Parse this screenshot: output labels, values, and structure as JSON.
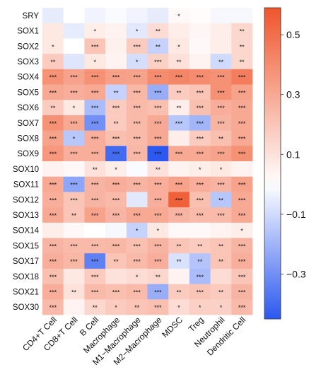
{
  "chart_data": {
    "type": "heatmap",
    "rows": [
      "SRY",
      "SOX1",
      "SOX2",
      "SOX3",
      "SOX4",
      "SOX5",
      "SOX6",
      "SOX7",
      "SOX8",
      "SOX9",
      "SOX10",
      "SOX11",
      "SOX12",
      "SOX13",
      "SOX14",
      "SOX15",
      "SOX17",
      "SOX18",
      "SOX21",
      "SOX30"
    ],
    "columns": [
      "CD4+T Cell",
      "CD8+T Cell",
      "B Cell",
      "Macrophage",
      "M1−Macrophage",
      "M2−Macrophage",
      "MDSC",
      "Treg",
      "Neutrophil",
      "Dendritic Cell"
    ],
    "values": [
      [
        -0.05,
        0.0,
        -0.03,
        -0.01,
        -0.03,
        -0.05,
        0.02,
        0.01,
        -0.02,
        -0.02
      ],
      [
        0.08,
        -0.05,
        0.06,
        0.04,
        -0.06,
        0.12,
        0.06,
        0.03,
        0.06,
        0.14
      ],
      [
        0.08,
        0.0,
        0.2,
        0.05,
        0.18,
        -0.12,
        0.08,
        0.02,
        0.06,
        0.14
      ],
      [
        0.18,
        -0.07,
        0.08,
        0.04,
        -0.09,
        0.16,
        0.1,
        0.04,
        -0.1,
        0.14
      ],
      [
        0.38,
        0.32,
        0.38,
        0.33,
        0.32,
        0.4,
        0.42,
        0.4,
        0.38,
        0.45
      ],
      [
        0.3,
        0.28,
        0.3,
        -0.12,
        0.25,
        -0.22,
        0.18,
        0.2,
        0.38,
        0.32
      ],
      [
        0.18,
        0.08,
        -0.18,
        0.18,
        0.24,
        0.22,
        0.06,
        0.22,
        0.28,
        0.3
      ],
      [
        0.38,
        0.3,
        -0.3,
        0.18,
        0.24,
        0.3,
        -0.15,
        -0.2,
        0.26,
        0.3
      ],
      [
        0.32,
        -0.15,
        0.28,
        0.22,
        0.24,
        0.3,
        0.06,
        0.18,
        0.22,
        0.3
      ],
      [
        0.36,
        0.28,
        0.28,
        -0.4,
        0.25,
        -0.45,
        0.3,
        0.3,
        0.32,
        0.38
      ],
      [
        0.04,
        0.02,
        0.1,
        0.06,
        -0.01,
        0.1,
        0.04,
        0.06,
        0.08,
        0.04
      ],
      [
        0.3,
        -0.24,
        0.26,
        0.28,
        0.26,
        0.28,
        0.32,
        0.28,
        0.26,
        0.32
      ],
      [
        0.28,
        0.2,
        0.26,
        0.24,
        -0.06,
        0.28,
        0.55,
        0.22,
        -0.15,
        0.3
      ],
      [
        0.3,
        0.2,
        0.32,
        0.26,
        0.3,
        0.3,
        0.26,
        0.24,
        0.24,
        0.3
      ],
      [
        0.06,
        0.02,
        0.0,
        -0.02,
        -0.12,
        0.08,
        0.02,
        0.02,
        0.04,
        0.06
      ],
      [
        0.26,
        0.24,
        0.24,
        0.25,
        0.22,
        0.26,
        0.2,
        0.18,
        0.2,
        0.26
      ],
      [
        0.28,
        0.25,
        -0.34,
        0.2,
        0.24,
        0.28,
        -0.08,
        -0.16,
        0.2,
        0.28
      ],
      [
        0.22,
        0.08,
        0.18,
        0.1,
        0.12,
        0.14,
        0.04,
        -0.18,
        0.12,
        0.2
      ],
      [
        0.28,
        0.1,
        0.24,
        0.22,
        0.24,
        -0.22,
        0.18,
        0.2,
        0.18,
        0.26
      ],
      [
        0.24,
        0.04,
        0.14,
        0.18,
        0.2,
        0.22,
        0.12,
        0.16,
        0.16,
        0.24
      ]
    ],
    "significance": [
      [
        "",
        "",
        "",
        "",
        "",
        "",
        "*",
        "",
        "",
        ""
      ],
      [
        "",
        "",
        "*",
        "",
        "*",
        "**",
        "",
        "",
        "",
        "**"
      ],
      [
        "*",
        "",
        "***",
        "",
        "***",
        "**",
        "*",
        "",
        "",
        "**"
      ],
      [
        "**",
        "",
        "*",
        "",
        "*",
        "***",
        "**",
        "",
        "**",
        "**"
      ],
      [
        "***",
        "***",
        "***",
        "***",
        "***",
        "***",
        "***",
        "***",
        "***",
        "***"
      ],
      [
        "***",
        "***",
        "***",
        "**",
        "***",
        "***",
        "**",
        "***",
        "***",
        "***"
      ],
      [
        "**",
        "*",
        "***",
        "***",
        "***",
        "***",
        "**",
        "***",
        "***",
        "***"
      ],
      [
        "***",
        "***",
        "***",
        "**",
        "***",
        "***",
        "***",
        "***",
        "***",
        "***"
      ],
      [
        "***",
        "*",
        "***",
        "***",
        "***",
        "***",
        "",
        "***",
        "**",
        "***"
      ],
      [
        "***",
        "***",
        "***",
        "***",
        "***",
        "***",
        "***",
        "***",
        "***",
        "***"
      ],
      [
        "",
        "",
        "**",
        "*",
        "",
        "**",
        "",
        "*",
        "*",
        ""
      ],
      [
        "***",
        "***",
        "***",
        "***",
        "***",
        "***",
        "***",
        "***",
        "***",
        "***"
      ],
      [
        "***",
        "***",
        "***",
        "***",
        "",
        "***",
        "***",
        "***",
        "**",
        "***"
      ],
      [
        "***",
        "**",
        "***",
        "***",
        "***",
        "***",
        "***",
        "***",
        "***",
        "***"
      ],
      [
        "",
        "",
        "",
        "",
        "*",
        "*",
        "",
        "",
        "",
        "*"
      ],
      [
        "***",
        "***",
        "***",
        "***",
        "***",
        "***",
        "**",
        "**",
        "**",
        "***"
      ],
      [
        "***",
        "***",
        "***",
        "**",
        "***",
        "***",
        "**",
        "**",
        "**",
        "***"
      ],
      [
        "***",
        "",
        "***",
        "",
        "*",
        "**",
        "",
        "***",
        "",
        "***"
      ],
      [
        "***",
        "**",
        "***",
        "***",
        "***",
        "***",
        "**",
        "***",
        "**",
        "***"
      ],
      [
        "***",
        "",
        "**",
        "*",
        "**",
        "***",
        "*",
        "*",
        "*",
        "***"
      ]
    ],
    "colorbar": {
      "ticks": [
        0.5,
        0.3,
        0.1,
        -0.1,
        -0.3
      ],
      "tick_labels": [
        "0.5",
        "0.3",
        "0.1",
        "−0.1",
        "−0.3"
      ],
      "range": [
        -0.45,
        0.59
      ],
      "low_color": "#2b58f0",
      "mid_color": "#ffffff",
      "high_color": "#f0552b"
    },
    "title": "",
    "xlabel": "",
    "ylabel": ""
  }
}
